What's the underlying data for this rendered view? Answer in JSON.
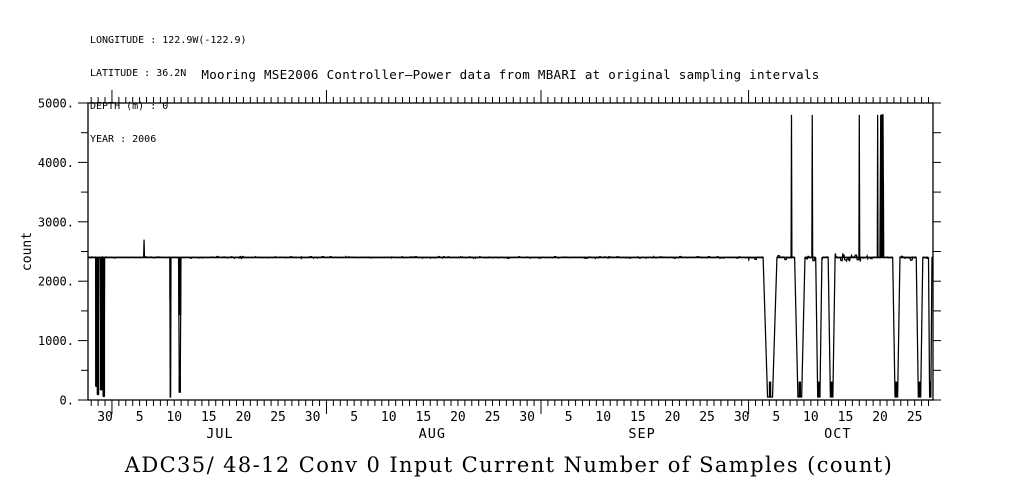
{
  "meta_block": {
    "lines": [
      "LONGITUDE : 122.9W(-122.9)",
      "LATITUDE : 36.2N",
      "DEPTH (m) : 0",
      "YEAR : 2006"
    ]
  },
  "header": {
    "title": "Mooring MSE2006 Controller–Power data from MBARI at original sampling intervals"
  },
  "footer": {
    "title": "ADC35/ 48-12 Conv 0 Input Current Number of Samples (count)"
  },
  "colors": {
    "ink": "#000000",
    "background": "#ffffff"
  },
  "chart_data": {
    "type": "line",
    "title": "Mooring MSE2006 Controller–Power data from MBARI at original sampling intervals",
    "ylabel": "count",
    "ylim": [
      0,
      5000
    ],
    "y_minor_step": 500,
    "y_major_step": 1000,
    "y_tick_labels": [
      {
        "value": 0,
        "label": "0."
      },
      {
        "value": 1000,
        "label": "1000."
      },
      {
        "value": 2000,
        "label": "2000."
      },
      {
        "value": 3000,
        "label": "3000."
      },
      {
        "value": 4000,
        "label": "4000."
      },
      {
        "value": 5000,
        "label": "5000."
      }
    ],
    "x_axis": {
      "epoch": "days relative to 2006-06-30",
      "start_day": -2.46,
      "end_day": 119.65,
      "month_boundary_days": [
        1,
        32,
        63,
        93
      ],
      "month_labels": [
        {
          "text": "JUL",
          "day": 16.6
        },
        {
          "text": "AUG",
          "day": 47.3
        },
        {
          "text": "SEP",
          "day": 77.6
        },
        {
          "text": "OCT",
          "day": 105.9
        }
      ],
      "tick_labels": [
        {
          "day": 0,
          "text": "30"
        },
        {
          "day": 5,
          "text": "5"
        },
        {
          "day": 10,
          "text": "10"
        },
        {
          "day": 15,
          "text": "15"
        },
        {
          "day": 20,
          "text": "20"
        },
        {
          "day": 25,
          "text": "25"
        },
        {
          "day": 30,
          "text": "30"
        },
        {
          "day": 36,
          "text": "5"
        },
        {
          "day": 41,
          "text": "10"
        },
        {
          "day": 46,
          "text": "15"
        },
        {
          "day": 51,
          "text": "20"
        },
        {
          "day": 56,
          "text": "25"
        },
        {
          "day": 61,
          "text": "30"
        },
        {
          "day": 67,
          "text": "5"
        },
        {
          "day": 72,
          "text": "10"
        },
        {
          "day": 77,
          "text": "15"
        },
        {
          "day": 82,
          "text": "20"
        },
        {
          "day": 87,
          "text": "25"
        },
        {
          "day": 92,
          "text": "30"
        },
        {
          "day": 97,
          "text": "5"
        },
        {
          "day": 102,
          "text": "10"
        },
        {
          "day": 107,
          "text": "15"
        },
        {
          "day": 112,
          "text": "20"
        },
        {
          "day": 117,
          "text": "25"
        }
      ]
    },
    "baseline_value": 2400,
    "spike_high_value": 4800,
    "events": [
      {
        "day": -1.25,
        "type": "dip",
        "min": 230,
        "width": 0.22,
        "thick": true
      },
      {
        "day": -1.02,
        "type": "dip",
        "min": 90,
        "width": 0.2,
        "thick": true
      },
      {
        "day": -0.55,
        "type": "dip",
        "min": 170,
        "width": 0.25,
        "thick": true
      },
      {
        "day": -0.18,
        "type": "dip",
        "min": 60,
        "width": 0.25,
        "thick": true
      },
      {
        "day": 5.64,
        "type": "spike",
        "max": 2700,
        "width": 0.12
      },
      {
        "day": 9.45,
        "type": "dip",
        "min": 50,
        "width": 0.16,
        "thick_to": 1700
      },
      {
        "day": 10.8,
        "type": "dip",
        "min": 130,
        "width": 0.35,
        "thick_to": 1430,
        "thick_w": 3,
        "blob": true
      },
      {
        "day": 96.1,
        "type": "dip",
        "min": 50,
        "width": 2.0,
        "blob": true
      },
      {
        "day": 99.2,
        "type": "spike",
        "max": 4800,
        "width": 0.12
      },
      {
        "day": 100.4,
        "type": "dip",
        "min": 50,
        "width": 1.5,
        "blob": true
      },
      {
        "day": 102.2,
        "type": "spike",
        "max": 4800,
        "width": 0.12
      },
      {
        "day": 103.15,
        "type": "dip",
        "min": 50,
        "width": 0.9,
        "blob": true
      },
      {
        "day": 105.0,
        "type": "dip",
        "min": 50,
        "width": 1.0,
        "blob": true
      },
      {
        "day": 109.0,
        "type": "spike",
        "max": 4800,
        "width": 0.12
      },
      {
        "day": 111.65,
        "type": "spike",
        "max": 4800,
        "width": 0.1
      },
      {
        "day": 112.25,
        "type": "spike",
        "max": 4800,
        "width": 0.55,
        "thick": true,
        "fill_to": 3650
      },
      {
        "day": 114.35,
        "type": "dip",
        "min": 50,
        "width": 1.05,
        "blob": true
      },
      {
        "day": 117.7,
        "type": "dip",
        "min": 50,
        "width": 0.95,
        "blob": true
      },
      {
        "day": 119.25,
        "type": "dip",
        "min": 50,
        "width": 0.5,
        "blob": true
      }
    ],
    "noise_regions": [
      {
        "start": -2.46,
        "end": 11.5,
        "amp": 10
      },
      {
        "start": 11.5,
        "end": 93,
        "amp": 16
      },
      {
        "start": 93,
        "end": 104.5,
        "amp": 55
      },
      {
        "start": 104.5,
        "end": 109,
        "amp": 80
      },
      {
        "start": 109,
        "end": 111.5,
        "amp": 25
      },
      {
        "start": 112.6,
        "end": 119.65,
        "amp": 55
      }
    ]
  }
}
